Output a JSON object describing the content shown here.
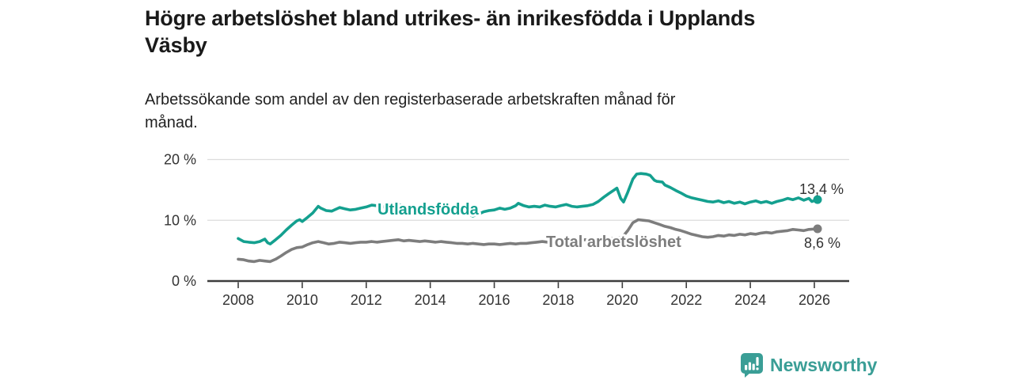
{
  "header": {
    "title": "Högre arbetslöshet bland utrikes- än inrikesfödda i Upplands\nVäsby",
    "subtitle": "Arbetssökande som andel av den registerbaserade arbetskraften månad för\nmånad."
  },
  "footer": {
    "brand_name": "Newsworthy",
    "brand_color": "#3a9e96",
    "logo_icon": "speech-bubble-bar-chart-icon"
  },
  "chart_data": {
    "type": "line",
    "title": "Högre arbetslöshet bland utrikes- än inrikesfödda i Upplands Väsby",
    "subtitle": "Arbetssökande som andel av den registerbaserade arbetskraften månad för månad.",
    "xlabel": "",
    "ylabel": "",
    "xlim": [
      2007.1,
      2027.1
    ],
    "ylim": [
      0,
      20
    ],
    "grid": "horizontal",
    "legend_position": "inline-labels",
    "x_ticks": [
      {
        "label": "2008",
        "value": 2008
      },
      {
        "label": "2010",
        "value": 2010
      },
      {
        "label": "2012",
        "value": 2012
      },
      {
        "label": "2014",
        "value": 2014
      },
      {
        "label": "2016",
        "value": 2016
      },
      {
        "label": "2018",
        "value": 2018
      },
      {
        "label": "2020",
        "value": 2020
      },
      {
        "label": "2022",
        "value": 2022
      },
      {
        "label": "2024",
        "value": 2024
      },
      {
        "label": "2026",
        "value": 2026
      }
    ],
    "y_ticks": [
      {
        "label": "0 %",
        "value": 0
      },
      {
        "label": "10 %",
        "value": 10
      },
      {
        "label": "20 %",
        "value": 20
      }
    ],
    "series": [
      {
        "name": "Utlandsfödda",
        "color": "#14a08f",
        "end_value": 13.4,
        "end_value_label": "13,4 %",
        "points": [
          [
            2008.0,
            7.0
          ],
          [
            2008.17,
            6.5
          ],
          [
            2008.33,
            6.4
          ],
          [
            2008.5,
            6.3
          ],
          [
            2008.67,
            6.5
          ],
          [
            2008.83,
            6.9
          ],
          [
            2008.92,
            6.3
          ],
          [
            2009.0,
            6.1
          ],
          [
            2009.17,
            6.8
          ],
          [
            2009.33,
            7.5
          ],
          [
            2009.5,
            8.4
          ],
          [
            2009.67,
            9.2
          ],
          [
            2009.83,
            9.9
          ],
          [
            2009.92,
            10.1
          ],
          [
            2010.0,
            9.8
          ],
          [
            2010.17,
            10.5
          ],
          [
            2010.33,
            11.2
          ],
          [
            2010.5,
            12.3
          ],
          [
            2010.58,
            12.0
          ],
          [
            2010.75,
            11.6
          ],
          [
            2010.92,
            11.5
          ],
          [
            2011.0,
            11.7
          ],
          [
            2011.17,
            12.1
          ],
          [
            2011.33,
            11.9
          ],
          [
            2011.5,
            11.7
          ],
          [
            2011.67,
            11.8
          ],
          [
            2011.83,
            12.0
          ],
          [
            2012.0,
            12.2
          ],
          [
            2012.17,
            12.5
          ],
          [
            2012.33,
            12.4
          ],
          [
            2012.5,
            12.2
          ],
          [
            2012.67,
            12.3
          ],
          [
            2012.83,
            12.5
          ],
          [
            2013.0,
            12.6
          ],
          [
            2013.17,
            12.4
          ],
          [
            2013.33,
            12.2
          ],
          [
            2013.5,
            12.1
          ],
          [
            2013.67,
            12.2
          ],
          [
            2013.83,
            12.1
          ],
          [
            2014.0,
            12.0
          ],
          [
            2014.17,
            11.9
          ],
          [
            2014.33,
            11.8
          ],
          [
            2014.5,
            11.7
          ],
          [
            2014.67,
            11.8
          ],
          [
            2014.83,
            11.7
          ],
          [
            2015.0,
            11.5
          ],
          [
            2015.17,
            11.0
          ],
          [
            2015.33,
            10.7
          ],
          [
            2015.5,
            11.0
          ],
          [
            2015.67,
            11.4
          ],
          [
            2015.83,
            11.6
          ],
          [
            2016.0,
            11.7
          ],
          [
            2016.17,
            12.0
          ],
          [
            2016.33,
            11.8
          ],
          [
            2016.5,
            12.0
          ],
          [
            2016.67,
            12.4
          ],
          [
            2016.75,
            12.8
          ],
          [
            2016.92,
            12.4
          ],
          [
            2017.08,
            12.2
          ],
          [
            2017.25,
            12.3
          ],
          [
            2017.42,
            12.2
          ],
          [
            2017.58,
            12.5
          ],
          [
            2017.75,
            12.3
          ],
          [
            2017.92,
            12.2
          ],
          [
            2018.08,
            12.4
          ],
          [
            2018.25,
            12.6
          ],
          [
            2018.42,
            12.3
          ],
          [
            2018.58,
            12.2
          ],
          [
            2018.75,
            12.3
          ],
          [
            2018.92,
            12.4
          ],
          [
            2019.08,
            12.6
          ],
          [
            2019.25,
            13.1
          ],
          [
            2019.42,
            13.8
          ],
          [
            2019.58,
            14.4
          ],
          [
            2019.75,
            15.0
          ],
          [
            2019.83,
            15.3
          ],
          [
            2019.95,
            13.6
          ],
          [
            2020.04,
            13.0
          ],
          [
            2020.17,
            14.6
          ],
          [
            2020.33,
            16.8
          ],
          [
            2020.45,
            17.6
          ],
          [
            2020.58,
            17.7
          ],
          [
            2020.75,
            17.6
          ],
          [
            2020.87,
            17.4
          ],
          [
            2021.0,
            16.6
          ],
          [
            2021.08,
            16.4
          ],
          [
            2021.25,
            16.3
          ],
          [
            2021.33,
            15.8
          ],
          [
            2021.5,
            15.4
          ],
          [
            2021.67,
            14.9
          ],
          [
            2021.83,
            14.5
          ],
          [
            2022.0,
            14.0
          ],
          [
            2022.17,
            13.7
          ],
          [
            2022.33,
            13.5
          ],
          [
            2022.5,
            13.3
          ],
          [
            2022.67,
            13.1
          ],
          [
            2022.83,
            13.0
          ],
          [
            2023.0,
            13.2
          ],
          [
            2023.17,
            12.9
          ],
          [
            2023.33,
            13.1
          ],
          [
            2023.5,
            12.8
          ],
          [
            2023.67,
            13.0
          ],
          [
            2023.83,
            12.7
          ],
          [
            2024.0,
            13.0
          ],
          [
            2024.17,
            13.2
          ],
          [
            2024.33,
            12.9
          ],
          [
            2024.5,
            13.1
          ],
          [
            2024.67,
            12.8
          ],
          [
            2024.83,
            13.1
          ],
          [
            2025.0,
            13.3
          ],
          [
            2025.17,
            13.6
          ],
          [
            2025.33,
            13.4
          ],
          [
            2025.5,
            13.7
          ],
          [
            2025.67,
            13.3
          ],
          [
            2025.83,
            13.6
          ],
          [
            2025.92,
            13.1
          ],
          [
            2026.1,
            13.4
          ]
        ]
      },
      {
        "name": "Total arbetslöshet",
        "color": "#7d7d7d",
        "end_value": 8.6,
        "end_value_label": "8,6 %",
        "points": [
          [
            2008.0,
            3.6
          ],
          [
            2008.17,
            3.5
          ],
          [
            2008.33,
            3.3
          ],
          [
            2008.5,
            3.2
          ],
          [
            2008.67,
            3.4
          ],
          [
            2008.83,
            3.3
          ],
          [
            2009.0,
            3.2
          ],
          [
            2009.17,
            3.6
          ],
          [
            2009.33,
            4.1
          ],
          [
            2009.5,
            4.7
          ],
          [
            2009.67,
            5.2
          ],
          [
            2009.83,
            5.5
          ],
          [
            2010.0,
            5.6
          ],
          [
            2010.17,
            6.0
          ],
          [
            2010.33,
            6.3
          ],
          [
            2010.5,
            6.5
          ],
          [
            2010.67,
            6.3
          ],
          [
            2010.83,
            6.1
          ],
          [
            2011.0,
            6.2
          ],
          [
            2011.17,
            6.4
          ],
          [
            2011.33,
            6.3
          ],
          [
            2011.5,
            6.2
          ],
          [
            2011.67,
            6.3
          ],
          [
            2011.83,
            6.4
          ],
          [
            2012.0,
            6.4
          ],
          [
            2012.17,
            6.5
          ],
          [
            2012.33,
            6.4
          ],
          [
            2012.5,
            6.5
          ],
          [
            2012.67,
            6.6
          ],
          [
            2012.83,
            6.7
          ],
          [
            2013.0,
            6.8
          ],
          [
            2013.17,
            6.6
          ],
          [
            2013.33,
            6.7
          ],
          [
            2013.5,
            6.6
          ],
          [
            2013.67,
            6.5
          ],
          [
            2013.83,
            6.6
          ],
          [
            2014.0,
            6.5
          ],
          [
            2014.17,
            6.4
          ],
          [
            2014.33,
            6.5
          ],
          [
            2014.5,
            6.4
          ],
          [
            2014.67,
            6.3
          ],
          [
            2014.83,
            6.2
          ],
          [
            2015.0,
            6.2
          ],
          [
            2015.17,
            6.1
          ],
          [
            2015.33,
            6.2
          ],
          [
            2015.5,
            6.1
          ],
          [
            2015.67,
            6.0
          ],
          [
            2015.83,
            6.1
          ],
          [
            2016.0,
            6.1
          ],
          [
            2016.17,
            6.0
          ],
          [
            2016.33,
            6.1
          ],
          [
            2016.5,
            6.2
          ],
          [
            2016.67,
            6.1
          ],
          [
            2016.83,
            6.2
          ],
          [
            2017.0,
            6.2
          ],
          [
            2017.17,
            6.3
          ],
          [
            2017.33,
            6.4
          ],
          [
            2017.5,
            6.5
          ],
          [
            2017.67,
            6.4
          ],
          [
            2017.83,
            6.5
          ],
          [
            2018.0,
            6.5
          ],
          [
            2018.17,
            6.6
          ],
          [
            2018.33,
            6.5
          ],
          [
            2018.5,
            6.6
          ],
          [
            2018.67,
            6.7
          ],
          [
            2018.83,
            6.8
          ],
          [
            2019.0,
            6.8
          ],
          [
            2019.17,
            6.9
          ],
          [
            2019.33,
            7.0
          ],
          [
            2019.5,
            7.1
          ],
          [
            2019.67,
            7.0
          ],
          [
            2019.83,
            7.1
          ],
          [
            2020.0,
            7.2
          ],
          [
            2020.17,
            8.3
          ],
          [
            2020.33,
            9.6
          ],
          [
            2020.5,
            10.1
          ],
          [
            2020.67,
            10.0
          ],
          [
            2020.83,
            9.9
          ],
          [
            2021.0,
            9.6
          ],
          [
            2021.17,
            9.3
          ],
          [
            2021.33,
            9.0
          ],
          [
            2021.5,
            8.8
          ],
          [
            2021.67,
            8.5
          ],
          [
            2021.83,
            8.3
          ],
          [
            2022.0,
            8.0
          ],
          [
            2022.17,
            7.7
          ],
          [
            2022.33,
            7.5
          ],
          [
            2022.5,
            7.3
          ],
          [
            2022.67,
            7.2
          ],
          [
            2022.83,
            7.3
          ],
          [
            2023.0,
            7.5
          ],
          [
            2023.17,
            7.4
          ],
          [
            2023.33,
            7.6
          ],
          [
            2023.5,
            7.5
          ],
          [
            2023.67,
            7.7
          ],
          [
            2023.83,
            7.6
          ],
          [
            2024.0,
            7.8
          ],
          [
            2024.17,
            7.7
          ],
          [
            2024.33,
            7.9
          ],
          [
            2024.5,
            8.0
          ],
          [
            2024.67,
            7.9
          ],
          [
            2024.83,
            8.1
          ],
          [
            2025.0,
            8.2
          ],
          [
            2025.17,
            8.3
          ],
          [
            2025.33,
            8.5
          ],
          [
            2025.5,
            8.4
          ],
          [
            2025.67,
            8.3
          ],
          [
            2025.83,
            8.5
          ],
          [
            2026.1,
            8.6
          ]
        ]
      }
    ]
  }
}
